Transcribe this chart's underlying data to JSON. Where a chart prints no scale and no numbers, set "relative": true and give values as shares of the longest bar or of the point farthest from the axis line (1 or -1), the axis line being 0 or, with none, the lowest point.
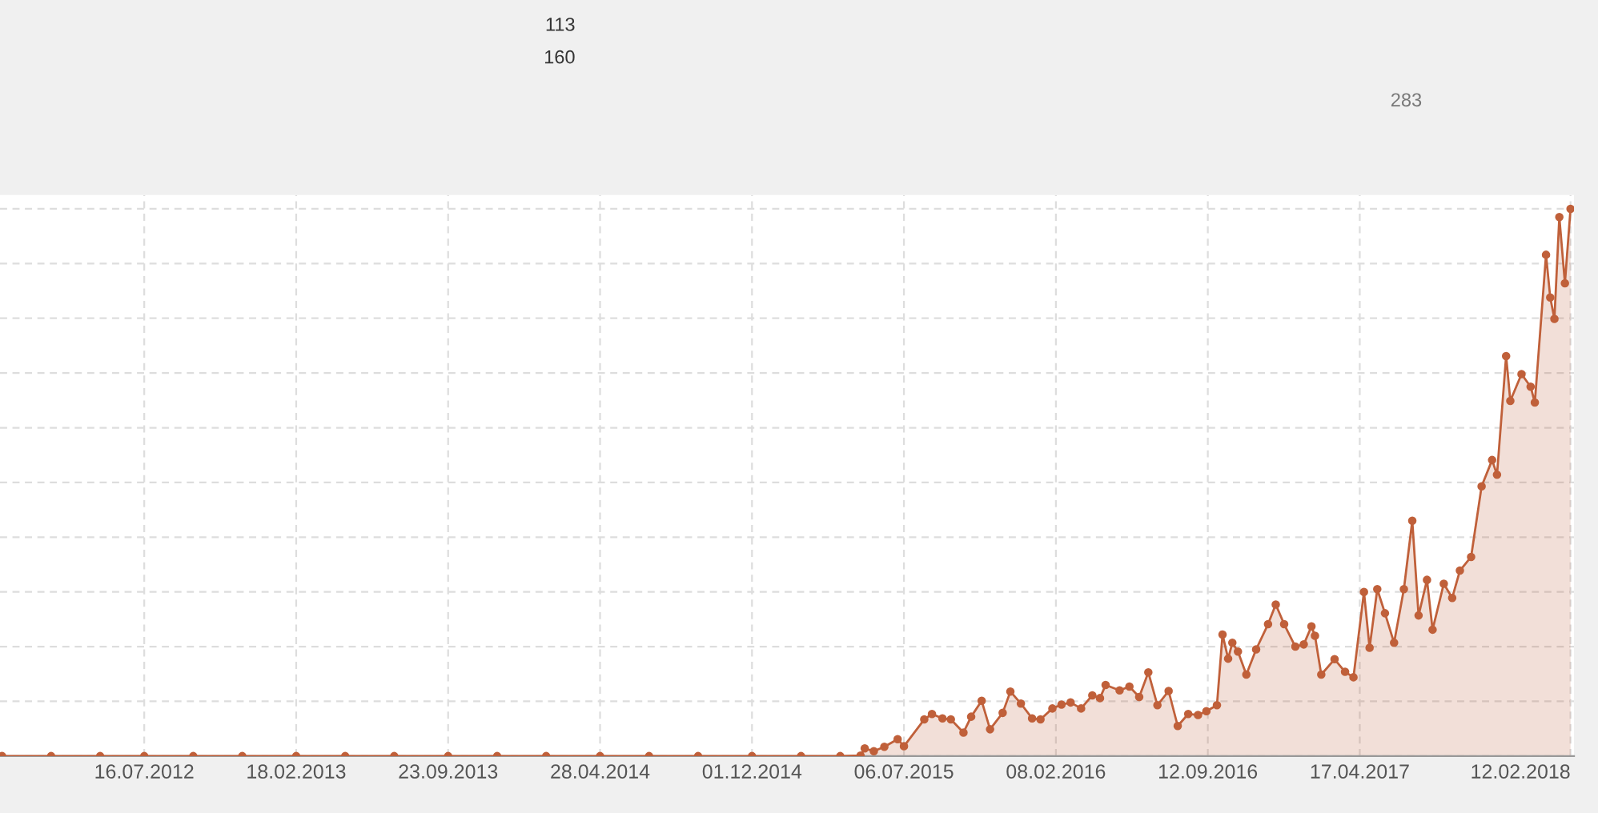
{
  "chart_data": [
    {
      "type": "area",
      "relative": true,
      "grid": true,
      "marker": "circle",
      "line_style": "solid",
      "xlim": [
        "2011-12-23",
        "2018-02-17"
      ],
      "xticks": [
        {
          "value": "2012-07-16",
          "label": "16.07.2012"
        },
        {
          "value": "2013-02-18",
          "label": "18.02.2013"
        },
        {
          "value": "2013-09-23",
          "label": "23.09.2013"
        },
        {
          "value": "2014-04-28",
          "label": "28.04.2014"
        },
        {
          "value": "2014-12-01",
          "label": "01.12.2014"
        },
        {
          "value": "2015-07-06",
          "label": "06.07.2015"
        },
        {
          "value": "2016-02-08",
          "label": "08.02.2016"
        },
        {
          "value": "2016-09-12",
          "label": "12.09.2016"
        },
        {
          "value": "2017-04-17",
          "label": "17.04.2017"
        },
        {
          "value": "2018-02-12",
          "label": "12.02.2018"
        }
      ],
      "series": [
        {
          "color": "#c0603a",
          "x": [
            "2011-12-26",
            "2012-03-05",
            "2012-05-14",
            "2012-07-16",
            "2012-09-24",
            "2012-12-03",
            "2013-02-18",
            "2013-04-29",
            "2013-07-08",
            "2013-09-23",
            "2013-12-02",
            "2014-02-10",
            "2014-04-28",
            "2014-07-07",
            "2014-09-15",
            "2014-12-01",
            "2015-02-09",
            "2015-04-06",
            "2015-05-05",
            "2015-05-11",
            "2015-05-24",
            "2015-06-08",
            "2015-06-27",
            "2015-07-06",
            "2015-08-04",
            "2015-08-15",
            "2015-08-30",
            "2015-09-11",
            "2015-09-29",
            "2015-10-10",
            "2015-10-25",
            "2015-11-06",
            "2015-11-24",
            "2015-12-05",
            "2015-12-20",
            "2016-01-05",
            "2016-01-17",
            "2016-02-03",
            "2016-02-16",
            "2016-02-29",
            "2016-03-15",
            "2016-03-31",
            "2016-04-11",
            "2016-04-19",
            "2016-05-09",
            "2016-05-23",
            "2016-06-06",
            "2016-06-19",
            "2016-07-02",
            "2016-07-18",
            "2016-07-31",
            "2016-08-15",
            "2016-08-29",
            "2016-09-10",
            "2016-09-25",
            "2016-10-03",
            "2016-10-11",
            "2016-10-17",
            "2016-10-25",
            "2016-11-06",
            "2016-11-20",
            "2016-12-07",
            "2016-12-18",
            "2016-12-30",
            "2017-01-15",
            "2017-01-27",
            "2017-02-07",
            "2017-02-12",
            "2017-02-21",
            "2017-03-12",
            "2017-03-27",
            "2017-04-08",
            "2017-04-23",
            "2017-05-01",
            "2017-05-12",
            "2017-05-23",
            "2017-06-05",
            "2017-06-19",
            "2017-07-01",
            "2017-07-10",
            "2017-07-22",
            "2017-07-30",
            "2017-08-15",
            "2017-08-27",
            "2017-09-07",
            "2017-09-23",
            "2017-10-08",
            "2017-10-23",
            "2017-10-30",
            "2017-11-12",
            "2017-11-18",
            "2017-12-04",
            "2017-12-17",
            "2017-12-23",
            "2018-01-08",
            "2018-01-14",
            "2018-01-20",
            "2018-01-27",
            "2018-02-04",
            "2018-02-12"
          ],
          "values": [
            0,
            0,
            0,
            0,
            0,
            0,
            0,
            0,
            0,
            0,
            0,
            0,
            0,
            0,
            0,
            0,
            0,
            0,
            0.001,
            0.014,
            0.009,
            0.017,
            0.031,
            0.018,
            0.067,
            0.077,
            0.069,
            0.067,
            0.043,
            0.072,
            0.101,
            0.049,
            0.079,
            0.118,
            0.096,
            0.069,
            0.067,
            0.087,
            0.094,
            0.098,
            0.087,
            0.111,
            0.106,
            0.13,
            0.12,
            0.127,
            0.108,
            0.153,
            0.093,
            0.119,
            0.055,
            0.077,
            0.075,
            0.082,
            0.093,
            0.222,
            0.178,
            0.207,
            0.191,
            0.149,
            0.195,
            0.241,
            0.277,
            0.241,
            0.2,
            0.204,
            0.237,
            0.22,
            0.149,
            0.177,
            0.154,
            0.144,
            0.3,
            0.198,
            0.305,
            0.261,
            0.207,
            0.305,
            0.43,
            0.257,
            0.322,
            0.231,
            0.315,
            0.289,
            0.339,
            0.364,
            0.493,
            0.541,
            0.514,
            0.731,
            0.649,
            0.698,
            0.675,
            0.646,
            0.916,
            0.838,
            0.799,
            0.985,
            0.864,
            1
          ]
        }
      ]
    },
    {
      "type": "other",
      "annotations": [
        "113",
        "160",
        "283"
      ]
    }
  ]
}
